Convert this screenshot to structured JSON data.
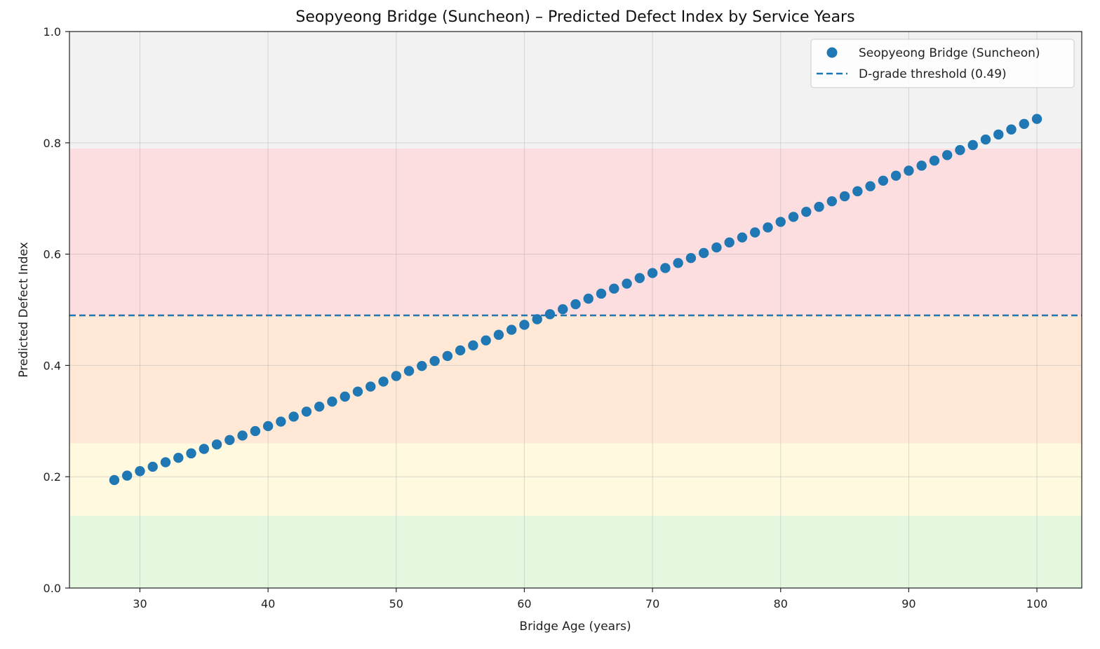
{
  "chart_data": {
    "type": "scatter",
    "title": "Seopyeong Bridge (Suncheon) – Predicted Defect Index by Service Years",
    "xlabel": "Bridge Age (years)",
    "ylabel": "Predicted Defect Index",
    "xlim": [
      24.5,
      103.5
    ],
    "ylim": [
      0.0,
      1.0
    ],
    "xticks": [
      30,
      40,
      50,
      60,
      70,
      80,
      90,
      100
    ],
    "yticks": [
      0.0,
      0.2,
      0.4,
      0.6,
      0.8,
      1.0
    ],
    "xtick_labels": [
      "30",
      "40",
      "50",
      "60",
      "70",
      "80",
      "90",
      "100"
    ],
    "ytick_labels": [
      "0.0",
      "0.2",
      "0.4",
      "0.6",
      "0.8",
      "1.0"
    ],
    "grid": true,
    "legend_position": "top-right",
    "bands": [
      {
        "from": 0.0,
        "to": 0.13,
        "color": "#e6f7e0"
      },
      {
        "from": 0.13,
        "to": 0.26,
        "color": "#fff9e0"
      },
      {
        "from": 0.26,
        "to": 0.49,
        "color": "#ffe9d6"
      },
      {
        "from": 0.49,
        "to": 0.79,
        "color": "#fcdde0"
      },
      {
        "from": 0.79,
        "to": 1.0,
        "color": "#f2f2f2"
      }
    ],
    "series": [
      {
        "name": "Seopyeong Bridge (Suncheon)",
        "color": "#1f77b4",
        "x": [
          28,
          29,
          30,
          31,
          32,
          33,
          34,
          35,
          36,
          37,
          38,
          39,
          40,
          41,
          42,
          43,
          44,
          45,
          46,
          47,
          48,
          49,
          50,
          51,
          52,
          53,
          54,
          55,
          56,
          57,
          58,
          59,
          60,
          61,
          62,
          63,
          64,
          65,
          66,
          67,
          68,
          69,
          70,
          71,
          72,
          73,
          74,
          75,
          76,
          77,
          78,
          79,
          80,
          81,
          82,
          83,
          84,
          85,
          86,
          87,
          88,
          89,
          90,
          91,
          92,
          93,
          94,
          95,
          96,
          97,
          98,
          99,
          100
        ],
        "y": [
          0.194,
          0.202,
          0.21,
          0.218,
          0.226,
          0.234,
          0.242,
          0.25,
          0.258,
          0.266,
          0.274,
          0.282,
          0.291,
          0.299,
          0.308,
          0.317,
          0.326,
          0.335,
          0.344,
          0.353,
          0.362,
          0.371,
          0.381,
          0.39,
          0.399,
          0.408,
          0.417,
          0.427,
          0.436,
          0.445,
          0.455,
          0.464,
          0.473,
          0.483,
          0.492,
          0.501,
          0.51,
          0.52,
          0.529,
          0.538,
          0.547,
          0.557,
          0.566,
          0.575,
          0.584,
          0.593,
          0.602,
          0.612,
          0.621,
          0.63,
          0.639,
          0.648,
          0.658,
          0.667,
          0.676,
          0.685,
          0.695,
          0.704,
          0.713,
          0.722,
          0.732,
          0.741,
          0.75,
          0.759,
          0.768,
          0.778,
          0.787,
          0.796,
          0.806,
          0.815,
          0.824,
          0.834,
          0.843
        ]
      }
    ],
    "threshold": {
      "name": "D-grade threshold (0.49)",
      "value": 0.49,
      "color": "#1f77b4"
    }
  }
}
